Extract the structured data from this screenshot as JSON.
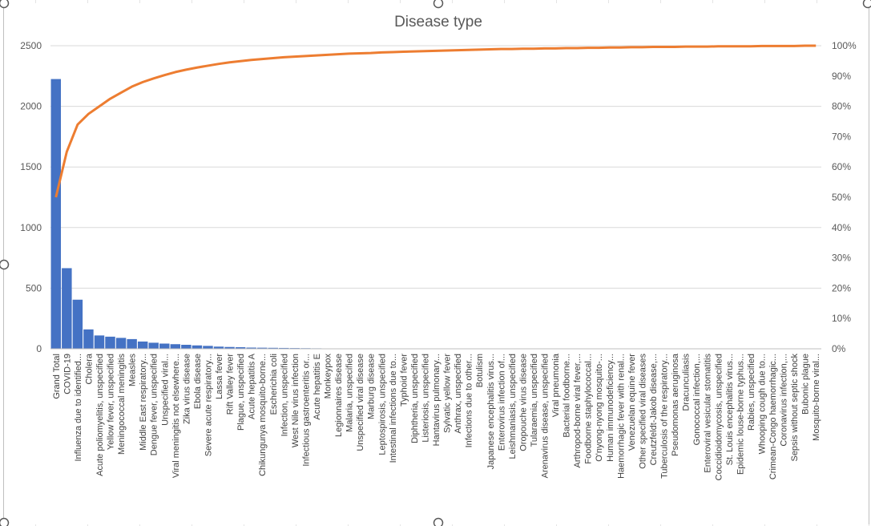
{
  "chart_data": {
    "type": "bar",
    "title": "Disease type",
    "xlabel": "",
    "ylabel": "",
    "ylim": [
      0,
      2500
    ],
    "y2lim": [
      0,
      1
    ],
    "yticks": [
      "0",
      "500",
      "1000",
      "1500",
      "2000",
      "2500"
    ],
    "y2ticks": [
      "0%",
      "10%",
      "20%",
      "30%",
      "40%",
      "50%",
      "60%",
      "70%",
      "80%",
      "90%",
      "100%"
    ],
    "grid": true,
    "legend": "none",
    "categories": [
      "Grand Total",
      "COVID-19",
      "Influenza due to identified...",
      "Cholera",
      "Acute poliomyelitis, unspecified",
      "Yellow fever, unspecified",
      "Meningococcal meningitis",
      "Measles",
      "Middle East respiratory...",
      "Dengue fever, unspecified",
      "Unspecified viral...",
      "Viral meningitis not elsewhere...",
      "Zika virus disease",
      "Ebola disease",
      "Severe acute respiratory...",
      "Lassa fever",
      "Rift Valley fever",
      "Plague, unspecified",
      "Acute hepatitis A",
      "Chikungunya mosquito-borne...",
      "Escherichia coli",
      "Infection, unspecified",
      "West Nile virus infection",
      "Infectious gastroenteritis or...",
      "Acute hepatitis E",
      "Monkeypox",
      "Legionnaires disease",
      "Malaria, unspecified",
      "Unspecified viral disease",
      "Marburg disease",
      "Leptospirosis, unspecified",
      "Intestinal infections due to...",
      "Typhoid fever",
      "Diphtheria, unspecified",
      "Listeriosis, unspecified",
      "Hantavirus pulmonary...",
      "Sylvatic yellow fever",
      "Anthrax, unspecified",
      "Infections due to other...",
      "Botulism",
      "Japanese encephalitis virus...",
      "Enterovirus infection of...",
      "Leishmaniasis, unspecified",
      "Oropouche virus disease",
      "Tularaemia, unspecified",
      "Arenavirus disease, unspecified",
      "Viral pneumonia",
      "Bacterial foodborne...",
      "Arthropod-borne viral fever,...",
      "Foodborne staphylococcal...",
      "O'nyong-nyong mosquito-...",
      "Human immunodeficiency...",
      "Haemorrhagic fever with renal...",
      "Venezuelan equine fever",
      "Other specified viral diseases",
      "Creutzfeldt-Jakob disease,...",
      "Tuberculosis of the respiratory...",
      "Pseudomonas aeruginosa",
      "Dracunculiasis",
      "Gonococcal infection,...",
      "Enteroviral vesicular stomatitis",
      "Coccidioidomycosis, unspecified",
      "St. Louis encephalitis virus...",
      "Epidemic louse-borne typhus...",
      "Rabies, unspecified",
      "Whooping cough due to...",
      "Crimean-Congo haemorrhagic...",
      "Coronavirus infection,...",
      "Sepsis without septic shock",
      "Bubonic plague",
      "Mosquito-borne viral..."
    ],
    "series": [
      {
        "type": "bar",
        "color": "#4472c4",
        "values": [
          2225,
          665,
          405,
          160,
          110,
          100,
          90,
          80,
          60,
          50,
          43,
          38,
          33,
          28,
          24,
          18,
          15,
          13,
          10,
          9,
          8,
          7,
          6,
          5,
          4,
          3,
          3,
          3,
          3,
          3,
          2,
          2,
          2,
          2,
          2,
          2,
          2,
          2,
          2,
          2,
          1,
          1,
          1,
          1,
          1,
          1,
          1,
          1,
          1,
          1,
          1,
          1,
          1,
          1,
          1,
          1,
          1,
          1,
          1,
          1,
          1,
          1,
          1,
          1,
          1,
          1,
          1,
          1,
          1,
          1,
          1
        ]
      },
      {
        "type": "line",
        "axis": "secondary",
        "color": "#ed7d31",
        "values": [
          0.5,
          0.65,
          0.74,
          0.775,
          0.8,
          0.825,
          0.845,
          0.865,
          0.88,
          0.892,
          0.903,
          0.913,
          0.921,
          0.928,
          0.934,
          0.94,
          0.945,
          0.949,
          0.953,
          0.956,
          0.959,
          0.962,
          0.964,
          0.966,
          0.968,
          0.97,
          0.972,
          0.974,
          0.975,
          0.976,
          0.978,
          0.979,
          0.98,
          0.981,
          0.982,
          0.983,
          0.984,
          0.985,
          0.986,
          0.987,
          0.988,
          0.989,
          0.989,
          0.99,
          0.99,
          0.991,
          0.991,
          0.992,
          0.992,
          0.993,
          0.993,
          0.994,
          0.994,
          0.995,
          0.995,
          0.996,
          0.996,
          0.996,
          0.997,
          0.997,
          0.997,
          0.998,
          0.998,
          0.998,
          0.998,
          0.999,
          0.999,
          0.999,
          0.999,
          1.0,
          1.0
        ]
      }
    ]
  }
}
